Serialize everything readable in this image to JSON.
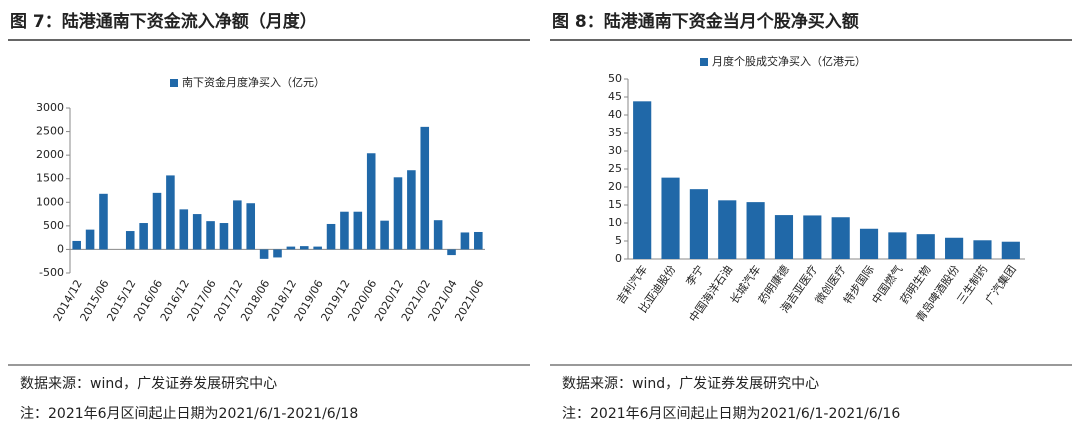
{
  "chart_data": [
    {
      "type": "bar",
      "title": "图 7：陆港通南下资金流入净额（月度）",
      "legend": "南下资金月度净买入（亿元）",
      "color": "#2068a8",
      "categories": [
        "2014/12",
        null,
        "2015/06",
        null,
        "2015/12",
        null,
        "2016/06",
        null,
        "2016/12",
        null,
        "2017/06",
        null,
        "2017/12",
        null,
        "2018/06",
        null,
        "2018/12",
        null,
        "2019/06",
        null,
        "2019/12",
        null,
        "2020/06",
        null,
        "2020/12",
        null,
        "2021/02",
        null,
        "2021/04",
        null,
        "2021/06"
      ],
      "values": [
        180,
        420,
        1180,
        null,
        390,
        560,
        1200,
        1570,
        850,
        750,
        600,
        560,
        1040,
        980,
        -200,
        -170,
        60,
        70,
        60,
        540,
        800,
        800,
        2040,
        610,
        1530,
        1680,
        2600,
        620,
        -120,
        360,
        370
      ],
      "ylim": [
        -500,
        3000
      ],
      "yticks": [
        -500,
        0,
        500,
        1000,
        1500,
        2000,
        2500,
        3000
      ],
      "source": "数据来源：wind，广发证券发展研究中心",
      "note": "注：2021年6月区间起止日期为2021/6/1-2021/6/18"
    },
    {
      "type": "bar",
      "title": "图 8：陆港通南下资金当月个股净买入额",
      "legend": "月度个股成交净买入（亿港元）",
      "color": "#2068a8",
      "categories": [
        "吉利汽车",
        "比亚迪股份",
        "李宁",
        "中国海洋石油",
        "长城汽车",
        "药明康德",
        "海吉亚医疗",
        "微创医疗",
        "特步国际",
        "中国燃气",
        "药明生物",
        "青岛啤酒股份",
        "三生制药",
        "广汽集团"
      ],
      "values": [
        43.8,
        22.6,
        19.4,
        16.3,
        15.8,
        12.2,
        12.1,
        11.6,
        8.4,
        7.4,
        6.9,
        5.9,
        5.2,
        4.8
      ],
      "ylim": [
        0,
        50
      ],
      "yticks": [
        0,
        5,
        10,
        15,
        20,
        25,
        30,
        35,
        40,
        45,
        50
      ],
      "source": "数据来源：wind，广发证券发展研究中心",
      "note": "注：2021年6月区间起止日期为2021/6/1-2021/6/16"
    }
  ]
}
